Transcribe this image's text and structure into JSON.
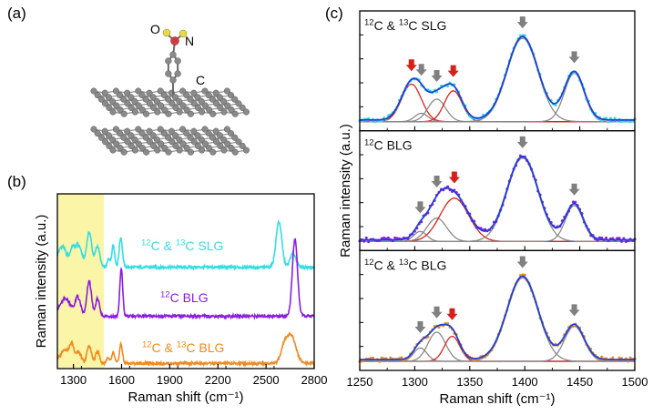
{
  "panel_a": {
    "label": "(a)",
    "atom_labels": {
      "oxygen": "O",
      "nitrogen": "N",
      "carbon": "C"
    },
    "colors": {
      "carbon": "#8a8a8a",
      "nitrogen": "#d23b3b",
      "oxygen": "#e8d84a"
    }
  },
  "colors": {
    "cyan": "#33dde4",
    "purple": "#8a1de0",
    "orange": "#ef8a1e",
    "fit_envelope": "#1e3fd6",
    "red_peak": "#d9261c",
    "gray_peak": "#8a8a8a",
    "red_arrow": "#d8201a",
    "gray_arrow": "#808080",
    "highlight": "#fbf5a8"
  },
  "chart_data": [
    {
      "panel": "(b)",
      "type": "line",
      "xlabel": "Raman shift (cm⁻¹)",
      "ylabel": "Raman intensity (a.u.)",
      "xlim": [
        1200,
        2800
      ],
      "xticks": [
        1300,
        1600,
        1900,
        2200,
        2500,
        2800
      ],
      "ylim": [
        0,
        1
      ],
      "grid": false,
      "highlight_x": [
        1200,
        1490
      ],
      "series": [
        {
          "name": "¹²C & ¹³C SLG",
          "name_parts": [
            "12",
            "C & ",
            "13",
            "C SLG"
          ],
          "color": "#33dde4",
          "offset": 0.58,
          "peaks": [
            [
              1230,
              0.1,
              25
            ],
            [
              1295,
              0.09,
              15
            ],
            [
              1335,
              0.12,
              18
            ],
            [
              1398,
              0.2,
              16
            ],
            [
              1450,
              0.12,
              14
            ],
            [
              1520,
              0.05,
              8
            ],
            [
              1548,
              0.13,
              9
            ],
            [
              1595,
              0.17,
              10
            ],
            [
              2580,
              0.26,
              18
            ],
            [
              2668,
              0.08,
              18
            ]
          ]
        },
        {
          "name": "¹²C BLG",
          "name_parts": [
            "12",
            "C BLG"
          ],
          "color": "#8a1de0",
          "offset": 0.3,
          "peaks": [
            [
              1250,
              0.08,
              30
            ],
            [
              1330,
              0.1,
              16
            ],
            [
              1398,
              0.2,
              14
            ],
            [
              1450,
              0.1,
              12
            ],
            [
              1598,
              0.27,
              9
            ],
            [
              2680,
              0.44,
              16
            ]
          ]
        },
        {
          "name": "¹²C & ¹³C BLG",
          "name_parts": [
            "12",
            "C & ",
            "13",
            "C BLG"
          ],
          "color": "#ef8a1e",
          "offset": 0.03,
          "peaks": [
            [
              1245,
              0.06,
              22
            ],
            [
              1290,
              0.09,
              14
            ],
            [
              1335,
              0.06,
              14
            ],
            [
              1398,
              0.1,
              14
            ],
            [
              1450,
              0.07,
              12
            ],
            [
              1515,
              0.03,
              9
            ],
            [
              1548,
              0.06,
              9
            ],
            [
              1596,
              0.11,
              9
            ],
            [
              2610,
              0.07,
              20
            ],
            [
              2655,
              0.16,
              30
            ]
          ]
        }
      ]
    },
    {
      "panel": "(c)",
      "type": "line",
      "xlabel": "Raman shift (cm⁻¹)",
      "ylabel": "Raman intensity (a.u.)",
      "xlim": [
        1250,
        1500
      ],
      "xticks": [
        1250,
        1300,
        1350,
        1400,
        1450,
        1500
      ],
      "grid": false,
      "subplots": [
        {
          "label": "¹²C & ¹³C SLG",
          "label_parts": [
            "12",
            "C & ",
            "13",
            "C SLG"
          ],
          "data_color": "#33dde4",
          "peaks": [
            [
              1297,
              0.45,
              9,
              "red"
            ],
            [
              1306,
              0.1,
              6,
              "gray"
            ],
            [
              1320,
              0.27,
              8,
              "gray"
            ],
            [
              1335,
              0.37,
              8,
              "red"
            ],
            [
              1398,
              1.0,
              14,
              "gray"
            ],
            [
              1445,
              0.58,
              9,
              "gray"
            ]
          ],
          "arrows": [
            [
              1297,
              "red"
            ],
            [
              1306,
              "gray"
            ],
            [
              1320,
              "gray"
            ],
            [
              1335,
              "red"
            ],
            [
              1398,
              "gray"
            ],
            [
              1445,
              "gray"
            ]
          ]
        },
        {
          "label": "¹²C BLG",
          "label_parts": [
            "12",
            "C BLG"
          ],
          "data_color": "#8a1de0",
          "peaks": [
            [
              1305,
              0.12,
              6,
              "gray"
            ],
            [
              1320,
              0.28,
              9,
              "gray"
            ],
            [
              1336,
              0.52,
              13,
              "red"
            ],
            [
              1398,
              1.0,
              14,
              "gray"
            ],
            [
              1445,
              0.43,
              8,
              "gray"
            ]
          ],
          "arrows": [
            [
              1305,
              "gray"
            ],
            [
              1320,
              "gray"
            ],
            [
              1336,
              "red"
            ],
            [
              1398,
              "gray"
            ],
            [
              1445,
              "gray"
            ]
          ]
        },
        {
          "label": "¹²C & ¹³C BLG",
          "label_parts": [
            "12",
            "C & ",
            "13",
            "C BLG"
          ],
          "data_color": "#ef8a1e",
          "peaks": [
            [
              1305,
              0.16,
              6,
              "gray"
            ],
            [
              1320,
              0.35,
              8,
              "gray"
            ],
            [
              1334,
              0.3,
              7,
              "red"
            ],
            [
              1398,
              1.0,
              14,
              "gray"
            ],
            [
              1445,
              0.42,
              9,
              "gray"
            ]
          ],
          "arrows": [
            [
              1305,
              "gray"
            ],
            [
              1320,
              "gray"
            ],
            [
              1334,
              "red"
            ],
            [
              1398,
              "gray"
            ],
            [
              1445,
              "gray"
            ]
          ]
        }
      ]
    }
  ]
}
